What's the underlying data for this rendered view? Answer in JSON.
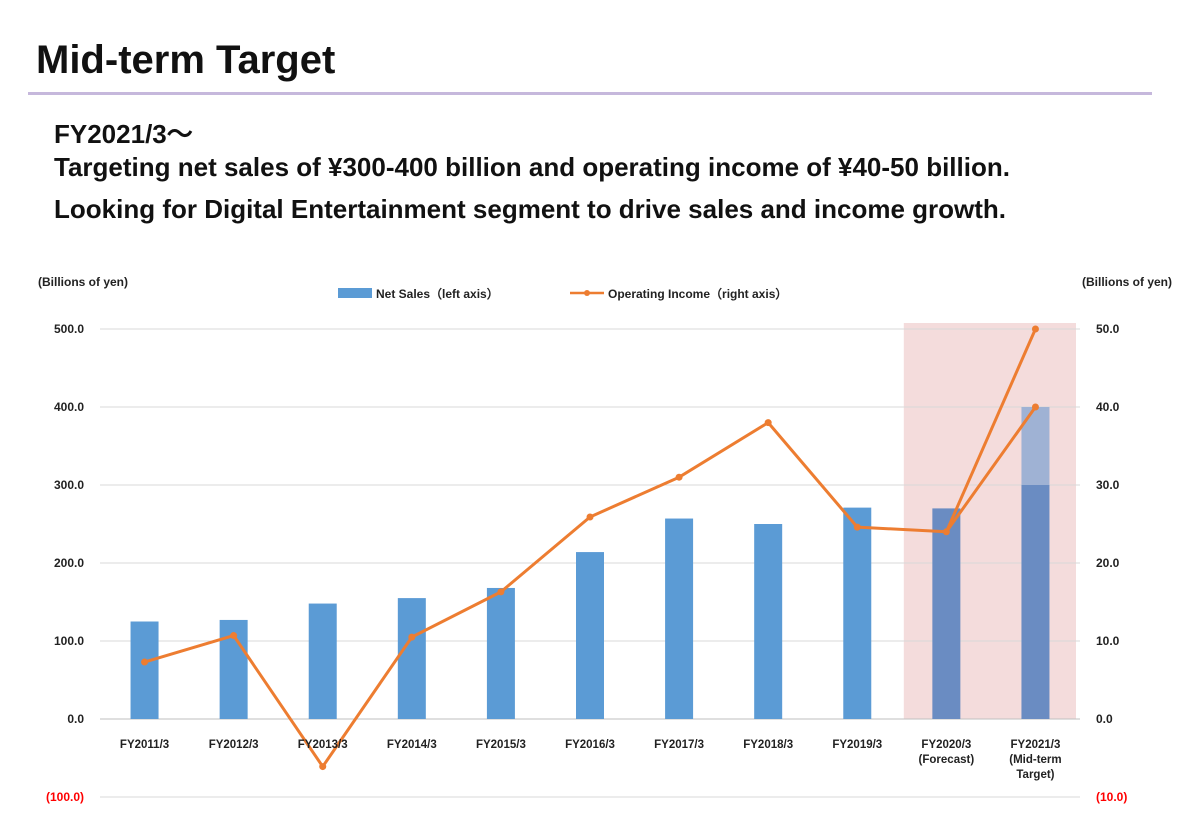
{
  "header": {
    "title": "Mid-term Target",
    "lines": [
      "FY2021/3〜",
      "Targeting net sales of ¥300-400 billion and operating income of ¥40-50 billion.",
      "Looking for Digital Entertainment segment to drive sales and income growth."
    ]
  },
  "colors": {
    "bar": "#5b9bd5",
    "bar_target": "#6a8cc2",
    "bar_target_upper": "#9fb2d4",
    "line": "#ed7d31",
    "highlight": "#ecc4c4",
    "negative_label": "#ff0000",
    "grid": "#d9d9d9"
  },
  "chart_data": {
    "type": "bar",
    "left_unit": "(Billions of yen)",
    "right_unit": "(Billions of yen)",
    "legend_position": "top-center",
    "categories": [
      [
        "FY2011/3"
      ],
      [
        "FY2012/3"
      ],
      [
        "FY2013/3"
      ],
      [
        "FY2014/3"
      ],
      [
        "FY2015/3"
      ],
      [
        "FY2016/3"
      ],
      [
        "FY2017/3"
      ],
      [
        "FY2018/3"
      ],
      [
        "FY2019/3"
      ],
      [
        "FY2020/3",
        "(Forecast)"
      ],
      [
        "FY2021/3",
        "(Mid-term",
        "Target)"
      ]
    ],
    "y_left": {
      "ticks": [
        "500.0",
        "400.0",
        "300.0",
        "200.0",
        "100.0",
        "0.0",
        "(100.0)"
      ],
      "ylim": [
        -100,
        500
      ]
    },
    "y_right": {
      "ticks": [
        "50.0",
        "40.0",
        "30.0",
        "20.0",
        "10.0",
        "0.0",
        "(10.0)"
      ],
      "ylim": [
        -10,
        50
      ]
    },
    "highlight_categories": [
      "FY2020/3",
      "FY2021/3"
    ],
    "series": [
      {
        "name": "Net Sales（left axis）",
        "type": "bar",
        "axis": "left",
        "values": [
          125,
          127,
          148,
          155,
          168,
          214,
          257,
          250,
          271,
          270,
          300
        ],
        "target_range": [
          300,
          400
        ]
      },
      {
        "name": "Operating Income（right axis）",
        "type": "line",
        "axis": "right",
        "values": [
          7.3,
          10.7,
          -6.1,
          10.5,
          16.3,
          25.9,
          31.0,
          38.0,
          24.6,
          24.0,
          40.0
        ],
        "target_upper": 50.0
      }
    ]
  }
}
